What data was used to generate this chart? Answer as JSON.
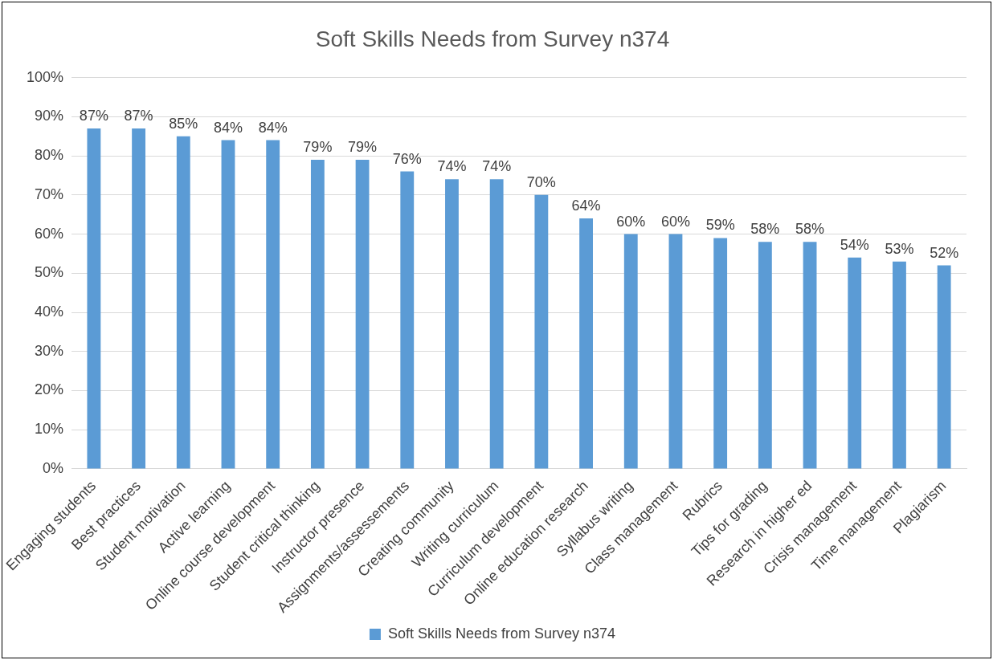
{
  "chart_data": {
    "type": "bar",
    "title": "Soft Skills Needs from Survey n374",
    "categories": [
      "Engaging students",
      "Best practices",
      "Student motivation",
      "Active learning",
      "Online course development",
      "Student critical thinking",
      "Instructor presence",
      "Assignments/assessements",
      "Creating community",
      "Writing curriculum",
      "Curriculum development",
      "Online education research",
      "Syllabus writing",
      "Class management",
      "Rubrics",
      "Tips for grading",
      "Research in higher ed",
      "Crisis management",
      "Time management",
      "Plagiarism"
    ],
    "series": [
      {
        "name": "Soft Skills Needs from Survey n374",
        "color": "#5b9bd5",
        "values": [
          87,
          87,
          85,
          84,
          84,
          79,
          79,
          76,
          74,
          74,
          70,
          64,
          60,
          60,
          59,
          58,
          58,
          54,
          53,
          52
        ],
        "value_labels": [
          "87%",
          "87%",
          "85%",
          "84%",
          "84%",
          "79%",
          "79%",
          "76%",
          "74%",
          "74%",
          "70%",
          "64%",
          "60%",
          "60%",
          "59%",
          "58%",
          "58%",
          "54%",
          "53%",
          "52%"
        ]
      }
    ],
    "ylim": [
      0,
      100
    ],
    "yticks": [
      {
        "value": 0,
        "label": "0%"
      },
      {
        "value": 10,
        "label": "10%"
      },
      {
        "value": 20,
        "label": "20%"
      },
      {
        "value": 30,
        "label": "30%"
      },
      {
        "value": 40,
        "label": "40%"
      },
      {
        "value": 50,
        "label": "50%"
      },
      {
        "value": 60,
        "label": "60%"
      },
      {
        "value": 70,
        "label": "70%"
      },
      {
        "value": 80,
        "label": "80%"
      },
      {
        "value": 90,
        "label": "90%"
      },
      {
        "value": 100,
        "label": "100%"
      }
    ],
    "grid": "y",
    "legend": "bottom"
  }
}
